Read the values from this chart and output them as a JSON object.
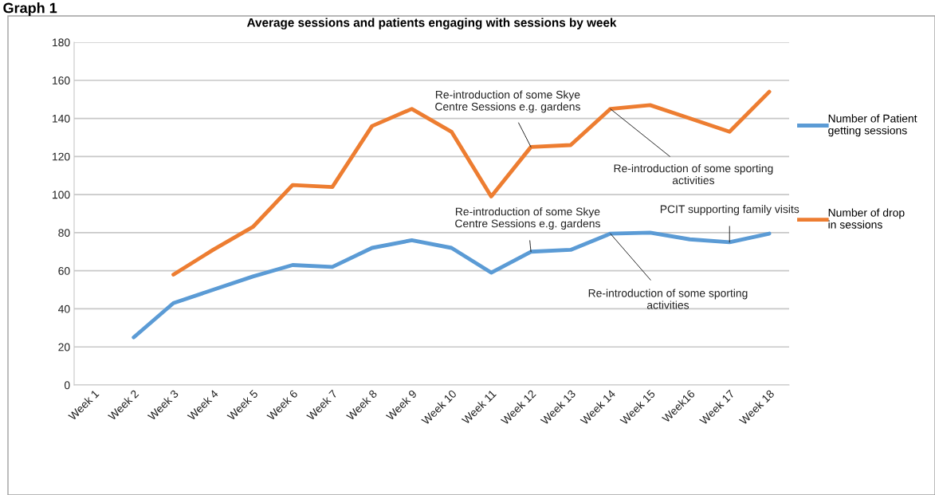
{
  "chart_data": {
    "type": "line",
    "title": "Average sessions and patients engaging with sessions by week",
    "categories": [
      "Week 1",
      "Week 2",
      "Week 3",
      "Week 4",
      "Week 5",
      "Week 6",
      "Week 7",
      "Week 8",
      "Week 9",
      "Week 10",
      "Week 11",
      "Week 12",
      "Week 13",
      "Week 14",
      "Week 15",
      "Week16",
      "Week 17",
      "Week 18"
    ],
    "series": [
      {
        "name": "Number of Patient getting sessions",
        "color": "#5b9bd5",
        "values": [
          null,
          25,
          43,
          50,
          57,
          63,
          62,
          72,
          76,
          72,
          59,
          70,
          71,
          79.5,
          80,
          76.5,
          75,
          79.5
        ]
      },
      {
        "name": "Number of drop in sessions",
        "color": "#ed7d31",
        "values": [
          null,
          null,
          58,
          71,
          83,
          105,
          104,
          136,
          145,
          133,
          99,
          125,
          126,
          145,
          147,
          140,
          133,
          154
        ]
      }
    ],
    "annotations": [
      "Graph 1",
      {
        "text": "Re-introduction of some Skye Centre Sessions e.g. gardens",
        "x": "Week 12",
        "y": 125
      },
      {
        "text": "Re-introduction of some sporting activities",
        "x": "Week 14",
        "y": 145
      },
      {
        "text": "Re-introduction of some Skye Centre Sessions e.g. gardens",
        "x": "Week 12",
        "y": 70
      },
      {
        "text": "Re-introduction of some sporting activities",
        "x": "Week 14",
        "y": 79.5
      },
      {
        "text": "PCIT supporting family visits",
        "x": "Week 17",
        "y": 75
      }
    ],
    "ylim": [
      0,
      180
    ],
    "yticks": [
      0,
      20,
      40,
      60,
      80,
      100,
      120,
      140,
      160,
      180
    ],
    "grid": "y",
    "legend": "right",
    "marker": "none",
    "line_style": "solid"
  }
}
